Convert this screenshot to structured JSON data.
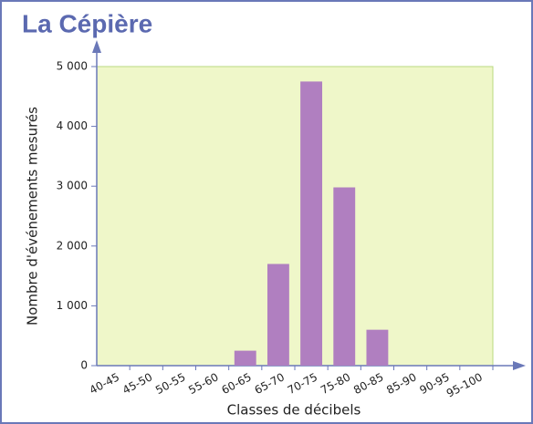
{
  "chart_data": {
    "type": "bar",
    "title": "La Cépière",
    "x_label": "Classes de décibels",
    "y_label": "Nombre d'événements mesurés",
    "categories": [
      "40-45",
      "45-50",
      "50-55",
      "55-60",
      "60-65",
      "65-70",
      "70-75",
      "75-80",
      "80-85",
      "85-90",
      "90-95",
      "95-100"
    ],
    "values": [
      0,
      0,
      0,
      0,
      250,
      1700,
      4750,
      2980,
      600,
      0,
      0,
      0
    ],
    "color": "#b07fc0",
    "ylim": [
      0,
      5000
    ],
    "yticks": [
      0,
      {
        "value": 1000,
        "label": "1 000"
      },
      {
        "value": 2000,
        "label": "2 000"
      },
      {
        "value": 3000,
        "label": "3 000"
      },
      {
        "value": 4000,
        "label": "4 000"
      },
      {
        "value": 5000,
        "label": "5 000"
      }
    ],
    "grid": false
  }
}
